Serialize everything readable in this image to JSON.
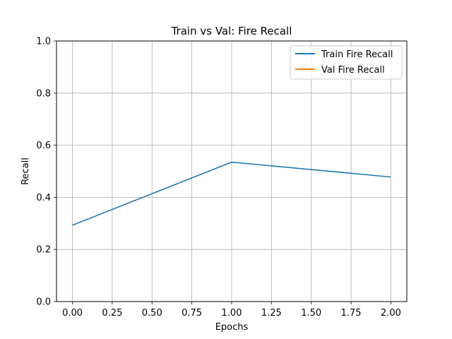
{
  "chart_data": {
    "type": "line",
    "title": "Train vs Val: Fire Recall",
    "xlabel": "Epochs",
    "ylabel": "Recall",
    "xlim": [
      -0.1,
      2.1
    ],
    "ylim": [
      0.0,
      1.0
    ],
    "x_ticks": [
      0.0,
      0.25,
      0.5,
      0.75,
      1.0,
      1.25,
      1.5,
      1.75,
      2.0
    ],
    "x_tick_labels": [
      "0.00",
      "0.25",
      "0.50",
      "0.75",
      "1.00",
      "1.25",
      "1.50",
      "1.75",
      "2.00"
    ],
    "y_ticks": [
      0.0,
      0.2,
      0.4,
      0.6,
      0.8,
      1.0
    ],
    "y_tick_labels": [
      "0.0",
      "0.2",
      "0.4",
      "0.6",
      "0.8",
      "1.0"
    ],
    "grid": true,
    "legend_position": "upper right",
    "series": [
      {
        "name": "Train Fire Recall",
        "color": "#1f77b4",
        "x": [
          0,
          1,
          2
        ],
        "y": [
          0.293,
          0.535,
          0.478
        ]
      },
      {
        "name": "Val Fire Recall",
        "color": "#ff7f0e",
        "x": [],
        "y": []
      }
    ]
  }
}
